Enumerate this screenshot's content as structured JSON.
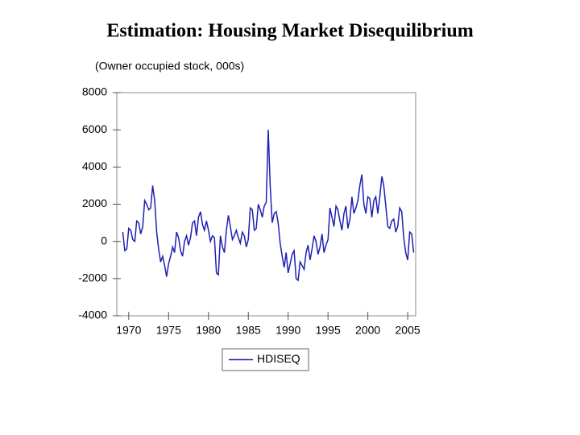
{
  "chart_data": {
    "type": "line",
    "title": "Estimation: Housing Market Disequilibrium",
    "ylabel": "(Owner occupied stock, 000s)",
    "x": [
      1969.25,
      1969.5,
      1969.75,
      1970,
      1970.25,
      1970.5,
      1970.75,
      1971,
      1971.25,
      1971.5,
      1971.75,
      1972,
      1972.25,
      1972.5,
      1972.75,
      1973,
      1973.25,
      1973.5,
      1973.75,
      1974,
      1974.25,
      1974.5,
      1974.75,
      1975,
      1975.25,
      1975.5,
      1975.75,
      1976,
      1976.25,
      1976.5,
      1976.75,
      1977,
      1977.25,
      1977.5,
      1977.75,
      1978,
      1978.25,
      1978.5,
      1978.75,
      1979,
      1979.25,
      1979.5,
      1979.75,
      1980,
      1980.25,
      1980.5,
      1980.75,
      1981,
      1981.25,
      1981.5,
      1981.75,
      1982,
      1982.25,
      1982.5,
      1982.75,
      1983,
      1983.25,
      1983.5,
      1983.75,
      1984,
      1984.25,
      1984.5,
      1984.75,
      1985,
      1985.25,
      1985.5,
      1985.75,
      1986,
      1986.25,
      1986.5,
      1986.75,
      1987,
      1987.25,
      1987.5,
      1987.75,
      1988,
      1988.25,
      1988.5,
      1988.75,
      1989,
      1989.25,
      1989.5,
      1989.75,
      1990,
      1990.25,
      1990.5,
      1990.75,
      1991,
      1991.25,
      1991.5,
      1991.75,
      1992,
      1992.25,
      1992.5,
      1992.75,
      1993,
      1993.25,
      1993.5,
      1993.75,
      1994,
      1994.25,
      1994.5,
      1994.75,
      1995,
      1995.25,
      1995.5,
      1995.75,
      1996,
      1996.25,
      1996.5,
      1996.75,
      1997,
      1997.25,
      1997.5,
      1997.75,
      1998,
      1998.25,
      1998.5,
      1998.75,
      1999,
      1999.25,
      1999.5,
      1999.75,
      2000,
      2000.25,
      2000.5,
      2000.75,
      2001,
      2001.25,
      2001.5,
      2001.75,
      2002,
      2002.25,
      2002.5,
      2002.75,
      2003,
      2003.25,
      2003.5,
      2003.75,
      2004,
      2004.25,
      2004.5,
      2004.75,
      2005,
      2005.25,
      2005.5,
      2005.75
    ],
    "series": [
      {
        "name": "HDISEQ",
        "color": "#1f1fb4",
        "values": [
          500,
          -500,
          -400,
          700,
          600,
          100,
          0,
          1100,
          1000,
          400,
          800,
          2200,
          2000,
          1700,
          1800,
          3000,
          2200,
          500,
          -400,
          -1100,
          -800,
          -1300,
          -1900,
          -1200,
          -800,
          -300,
          -600,
          500,
          200,
          -500,
          -800,
          0,
          300,
          -200,
          200,
          1000,
          1100,
          300,
          1300,
          1600,
          900,
          600,
          1100,
          600,
          0,
          300,
          200,
          -1700,
          -1800,
          300,
          -300,
          -600,
          600,
          1400,
          800,
          100,
          300,
          600,
          200,
          -100,
          500,
          300,
          -300,
          100,
          1800,
          1700,
          600,
          700,
          2000,
          1700,
          1300,
          1900,
          2100,
          6000,
          3000,
          1000,
          1500,
          1600,
          1000,
          -100,
          -800,
          -1400,
          -600,
          -1700,
          -1200,
          -700,
          -500,
          -2000,
          -2100,
          -1100,
          -1300,
          -1500,
          -600,
          -200,
          -1000,
          -400,
          300,
          0,
          -700,
          -300,
          400,
          -600,
          -200,
          100,
          1800,
          1300,
          800,
          1900,
          1700,
          1100,
          600,
          1500,
          1900,
          700,
          1200,
          2400,
          1500,
          1800,
          2200,
          3000,
          3600,
          2000,
          1500,
          2400,
          2300,
          1300,
          2200,
          2400,
          1500,
          2400,
          3500,
          3000,
          1900,
          800,
          700,
          1100,
          1200,
          500,
          800,
          1800,
          1600,
          200,
          -600,
          -1000,
          500,
          400,
          -600
        ]
      }
    ],
    "xlim": [
      1968.5,
      2006.0
    ],
    "xticks": [
      1970,
      1975,
      1980,
      1985,
      1990,
      1995,
      2000,
      2005
    ],
    "ylim": [
      -4000,
      8000
    ],
    "yticks": [
      -4000,
      -2000,
      0,
      2000,
      4000,
      6000,
      8000
    ],
    "legend": "bottom"
  }
}
